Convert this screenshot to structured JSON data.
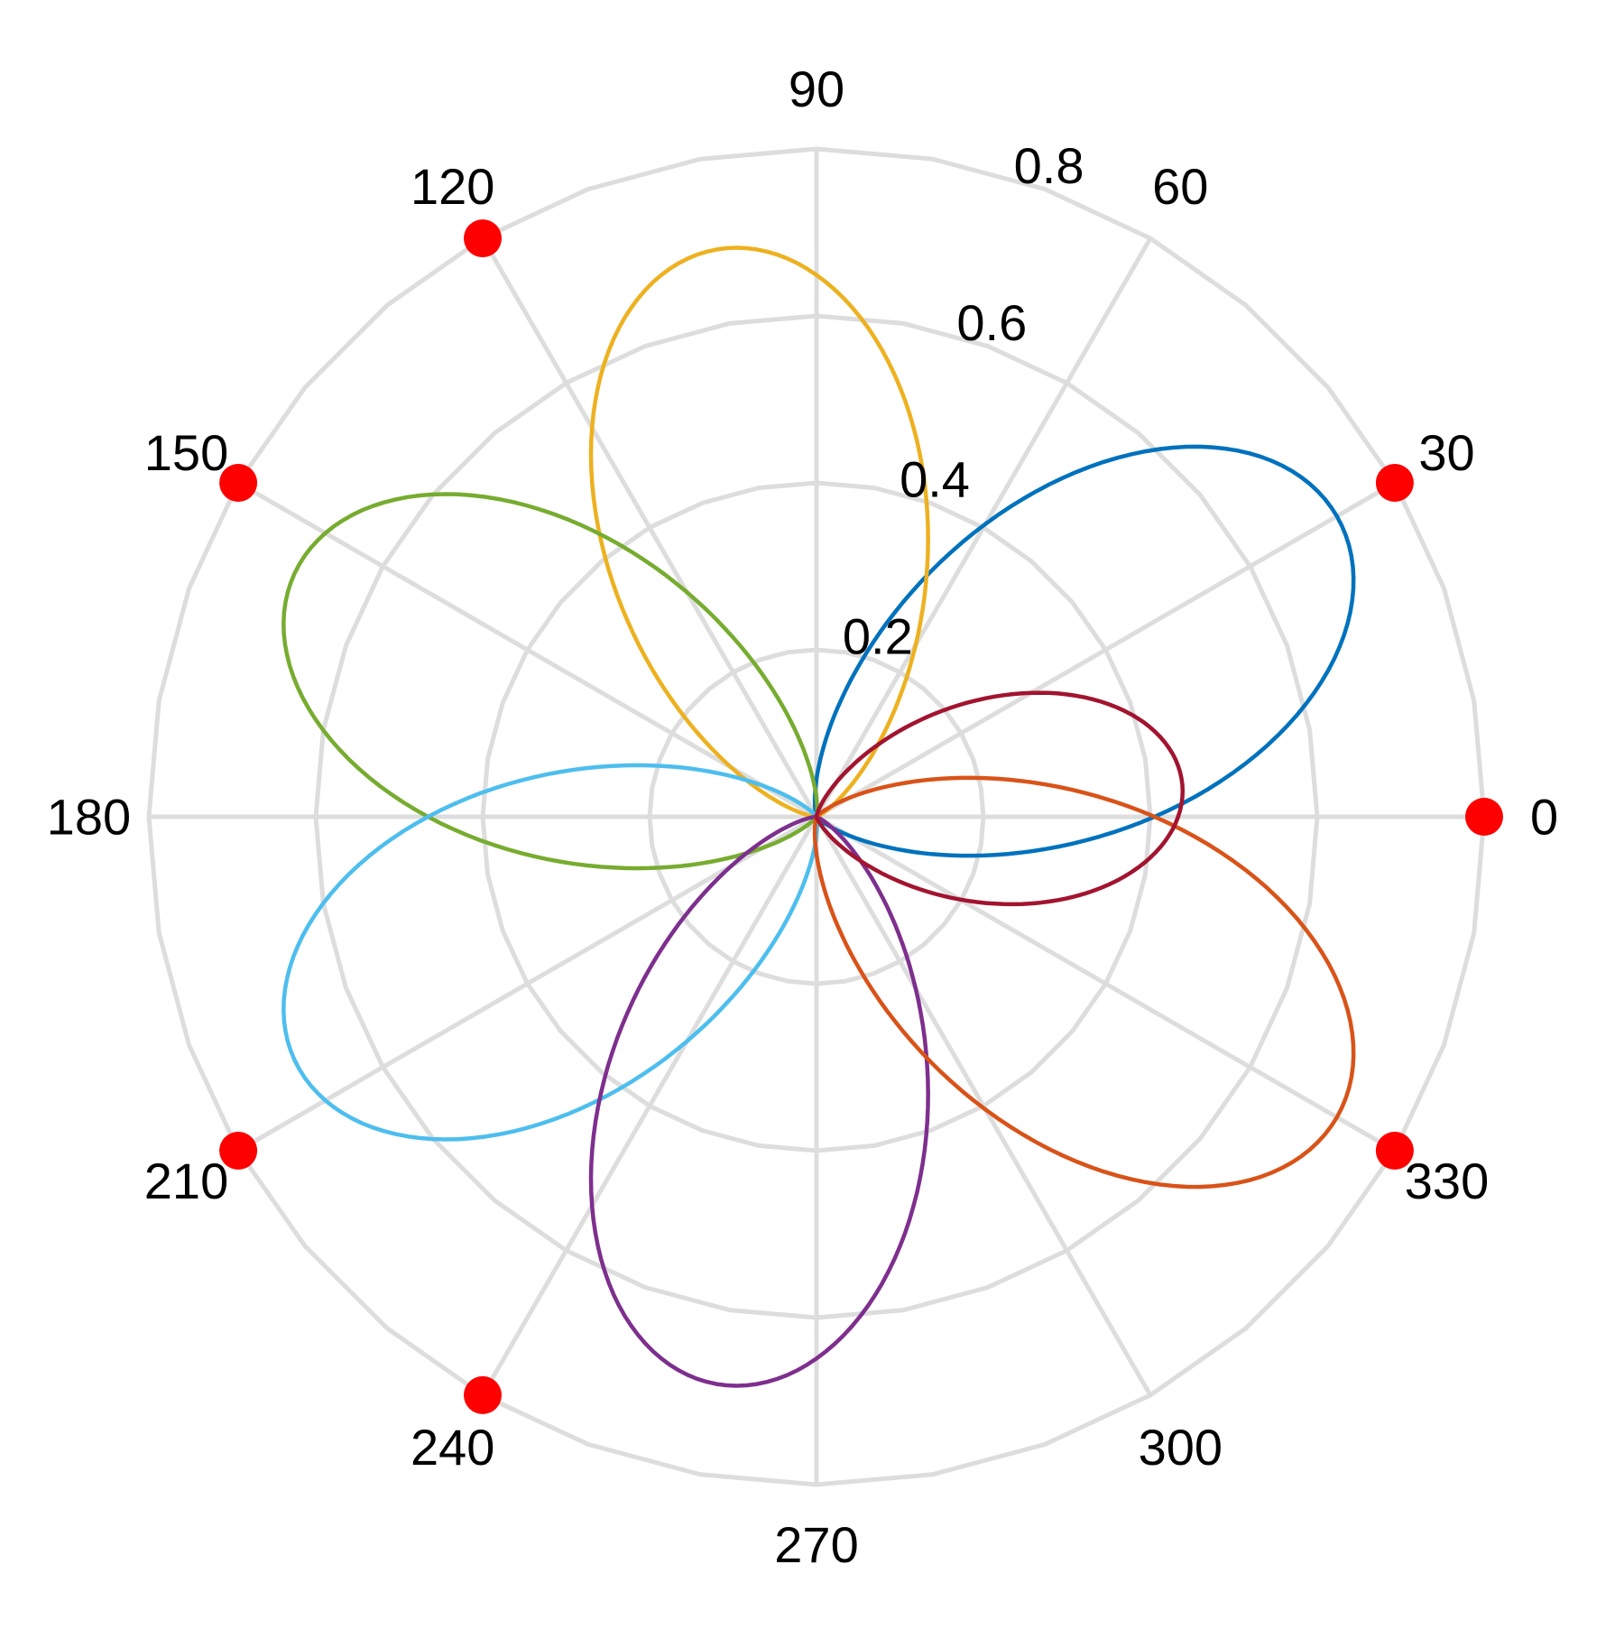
{
  "chart_data": {
    "type": "polar",
    "title": "",
    "r_range": [
      0,
      0.8
    ],
    "r_ticks": [
      0.2,
      0.4,
      0.6,
      0.8
    ],
    "r_tick_labels": [
      "0.2",
      "0.4",
      "0.6",
      "0.8"
    ],
    "theta_ticks_deg": [
      0,
      30,
      60,
      90,
      120,
      150,
      180,
      210,
      240,
      270,
      300,
      330
    ],
    "theta_tick_labels": [
      "0",
      "30",
      "60",
      "90",
      "120",
      "150",
      "180",
      "210",
      "240",
      "270",
      "300",
      "330"
    ],
    "grid": true,
    "grid_color": "#dddddd",
    "curve_form": "r = a * cos(theta - phase)^n for |theta - phase| <= 90 deg, else approx 0",
    "series": [
      {
        "color": "#0072BD",
        "phase_deg": 30,
        "peak_r": 0.72,
        "exponent": 4
      },
      {
        "color": "#EDB120",
        "phase_deg": 100,
        "peak_r": 0.69,
        "exponent": 4
      },
      {
        "color": "#77AC30",
        "phase_deg": 155,
        "peak_r": 0.69,
        "exponent": 4
      },
      {
        "color": "#4DBEEE",
        "phase_deg": 205,
        "peak_r": 0.69,
        "exponent": 4
      },
      {
        "color": "#7E2F8E",
        "phase_deg": 260,
        "peak_r": 0.69,
        "exponent": 4
      },
      {
        "color": "#D95319",
        "phase_deg": 330,
        "peak_r": 0.72,
        "exponent": 4
      },
      {
        "color": "#A2142F",
        "phase_deg": 5,
        "peak_r": 0.44,
        "exponent": 4
      }
    ],
    "markers": {
      "color": "#ff0000",
      "r": 0.8,
      "theta_deg": [
        0,
        30,
        120,
        150,
        210,
        240,
        330
      ]
    }
  }
}
